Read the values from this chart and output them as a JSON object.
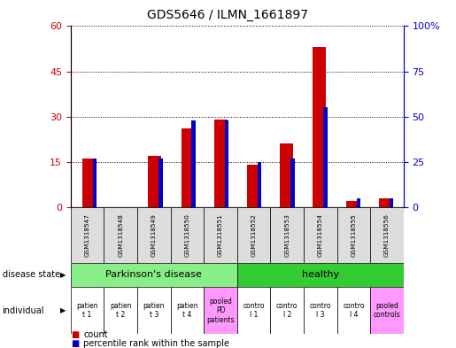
{
  "title": "GDS5646 / ILMN_1661897",
  "samples": [
    "GSM1318547",
    "GSM1318548",
    "GSM1318549",
    "GSM1318550",
    "GSM1318551",
    "GSM1318552",
    "GSM1318553",
    "GSM1318554",
    "GSM1318555",
    "GSM1318556"
  ],
  "count_values": [
    16,
    0,
    17,
    26,
    29,
    14,
    21,
    53,
    2,
    3
  ],
  "percentile_values": [
    27,
    0,
    27,
    48,
    48,
    25,
    27,
    55,
    5,
    5
  ],
  "count_color": "#cc0000",
  "percentile_color": "#0000cc",
  "left_ylim": [
    0,
    60
  ],
  "right_ylim": [
    0,
    100
  ],
  "left_yticks": [
    0,
    15,
    30,
    45,
    60
  ],
  "right_yticks": [
    0,
    25,
    50,
    75,
    100
  ],
  "right_yticklabels": [
    "0",
    "25",
    "50",
    "75",
    "100%"
  ],
  "disease_groups": [
    {
      "label": "Parkinson's disease",
      "start": 0,
      "end": 5,
      "color": "#88ee88"
    },
    {
      "label": "healthy",
      "start": 5,
      "end": 10,
      "color": "#33cc33"
    }
  ],
  "individual_labels": [
    "patien\nt 1",
    "patien\nt 2",
    "patien\nt 3",
    "patien\nt 4",
    "pooled\nPD\npatients",
    "contro\nl 1",
    "contro\nl 2",
    "contro\nl 3",
    "contro\nl 4",
    "pooled\ncontrols"
  ],
  "individual_bg_normal": "#ffffff",
  "individual_bg_pooled": "#ff99ff",
  "pooled_indices": [
    4,
    9
  ],
  "gsm_bg": "#dddddd",
  "left_label_color": "#cc0000",
  "right_label_color": "#0000cc"
}
